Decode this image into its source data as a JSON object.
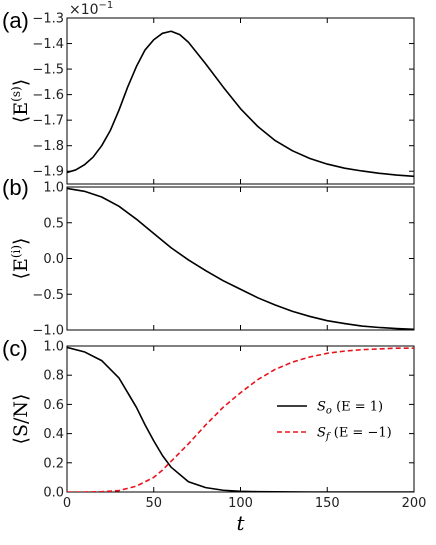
{
  "chart_data": [
    {
      "type": "line",
      "panel_label": "(a)",
      "ylabel": "⟨E^(s)⟩",
      "ylabel_display": "⟨E(s)⟩",
      "xlim": [
        0,
        200
      ],
      "ylim": [
        -1.95,
        -1.3
      ],
      "y_scale_text": "×10",
      "y_scale_exp": "−1",
      "yticks": [
        "−1.3",
        "−1.4",
        "−1.5",
        "−1.6",
        "−1.7",
        "−1.8",
        "−1.9"
      ],
      "ytick_values": [
        -1.3,
        -1.4,
        -1.5,
        -1.6,
        -1.7,
        -1.8,
        -1.9
      ],
      "show_xticklabels": false,
      "series": [
        {
          "color": "#000000",
          "dash": "solid",
          "x": [
            0,
            5,
            10,
            15,
            20,
            25,
            30,
            35,
            40,
            45,
            50,
            55,
            60,
            65,
            70,
            80,
            90,
            100,
            110,
            120,
            130,
            140,
            150,
            160,
            170,
            180,
            190,
            200
          ],
          "y": [
            -1.905,
            -1.895,
            -1.875,
            -1.845,
            -1.8,
            -1.74,
            -1.66,
            -1.57,
            -1.49,
            -1.425,
            -1.385,
            -1.36,
            -1.352,
            -1.365,
            -1.395,
            -1.48,
            -1.57,
            -1.655,
            -1.725,
            -1.78,
            -1.82,
            -1.85,
            -1.872,
            -1.888,
            -1.899,
            -1.908,
            -1.915,
            -1.92
          ]
        }
      ]
    },
    {
      "type": "line",
      "panel_label": "(b)",
      "ylabel": "⟨E^(i)⟩",
      "ylabel_display": "⟨E(i)⟩",
      "xlim": [
        0,
        200
      ],
      "ylim": [
        -1.0,
        1.0
      ],
      "yticks": [
        "1.0",
        "0.5",
        "0.0",
        "−0.5",
        "−1.0"
      ],
      "ytick_values": [
        1.0,
        0.5,
        0.0,
        -0.5,
        -1.0
      ],
      "show_xticklabels": false,
      "series": [
        {
          "color": "#000000",
          "dash": "solid",
          "x": [
            0,
            10,
            20,
            30,
            40,
            50,
            60,
            70,
            80,
            90,
            100,
            110,
            120,
            130,
            140,
            150,
            160,
            170,
            180,
            190,
            200
          ],
          "y": [
            0.98,
            0.94,
            0.86,
            0.73,
            0.55,
            0.35,
            0.15,
            -0.02,
            -0.17,
            -0.31,
            -0.43,
            -0.55,
            -0.65,
            -0.74,
            -0.81,
            -0.87,
            -0.91,
            -0.945,
            -0.965,
            -0.98,
            -0.99
          ]
        }
      ]
    },
    {
      "type": "line",
      "panel_label": "(c)",
      "ylabel": "⟨S/N⟩",
      "xlabel": "t",
      "xlim": [
        0,
        200
      ],
      "ylim": [
        0.0,
        1.0
      ],
      "xticks": [
        "0",
        "50",
        "100",
        "150",
        "200"
      ],
      "xtick_values": [
        0,
        50,
        100,
        150,
        200
      ],
      "yticks": [
        "1.0",
        "0.8",
        "0.6",
        "0.4",
        "0.2",
        "0.0"
      ],
      "ytick_values": [
        1.0,
        0.8,
        0.6,
        0.4,
        0.2,
        0.0
      ],
      "show_xticklabels": true,
      "legend_position": "center-right",
      "series": [
        {
          "name": "S_o (E = 1)",
          "legend_label": "S_o (E = 1)",
          "color": "#000000",
          "dash": "solid",
          "x": [
            0,
            10,
            20,
            30,
            40,
            45,
            50,
            55,
            60,
            70,
            80,
            90,
            100,
            110,
            120,
            140,
            160,
            180,
            200
          ],
          "y": [
            0.99,
            0.96,
            0.9,
            0.78,
            0.58,
            0.46,
            0.35,
            0.25,
            0.17,
            0.07,
            0.03,
            0.012,
            0.005,
            0.002,
            0.001,
            0,
            0,
            0,
            0
          ]
        },
        {
          "name": "S_f (E = −1)",
          "legend_label": "S_f (E = −1)",
          "color": "#e8141c",
          "dash": "dashed",
          "x": [
            0,
            10,
            20,
            30,
            40,
            50,
            55,
            60,
            70,
            80,
            90,
            100,
            110,
            120,
            130,
            140,
            150,
            160,
            170,
            180,
            190,
            200
          ],
          "y": [
            0,
            0,
            0.002,
            0.01,
            0.04,
            0.1,
            0.15,
            0.21,
            0.33,
            0.46,
            0.58,
            0.68,
            0.77,
            0.84,
            0.89,
            0.925,
            0.95,
            0.965,
            0.975,
            0.98,
            0.985,
            0.985
          ]
        }
      ]
    }
  ]
}
